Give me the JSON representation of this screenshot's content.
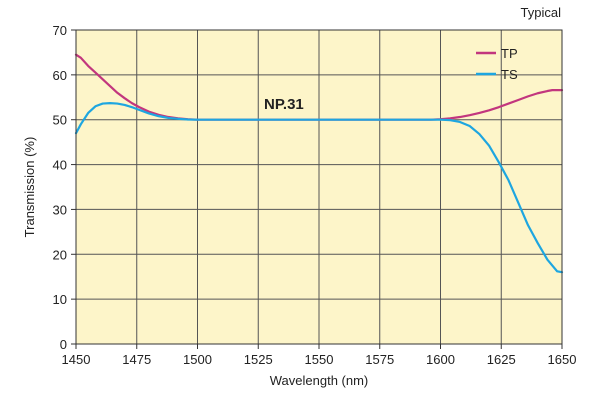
{
  "chart_data": {
    "type": "line",
    "note": "Typical",
    "annotation": "NP.31",
    "xlabel": "Wavelength (nm)",
    "ylabel": "Transmission (%)",
    "xlim": [
      1450,
      1650
    ],
    "ylim": [
      0,
      70
    ],
    "x_ticks": [
      1450,
      1475,
      1500,
      1525,
      1550,
      1575,
      1600,
      1625,
      1650
    ],
    "y_ticks": [
      0,
      10,
      20,
      30,
      40,
      50,
      60,
      70
    ],
    "grid": true,
    "legend_position": "top-right",
    "plot_background": "#FDF5C9",
    "series": [
      {
        "name": "TP",
        "color": "#C2367E",
        "x": [
          1450,
          1452,
          1455,
          1458,
          1461,
          1464,
          1467,
          1470,
          1473,
          1476,
          1480,
          1484,
          1488,
          1492,
          1496,
          1500,
          1525,
          1550,
          1575,
          1596,
          1600,
          1604,
          1608,
          1612,
          1616,
          1620,
          1624,
          1628,
          1632,
          1636,
          1640,
          1644,
          1646,
          1648,
          1650
        ],
        "y": [
          64.5,
          63.8,
          62,
          60.5,
          59,
          57.5,
          56,
          54.8,
          53.7,
          52.8,
          51.8,
          51.1,
          50.6,
          50.3,
          50.1,
          50,
          50,
          50,
          50,
          50,
          50.1,
          50.3,
          50.6,
          51,
          51.5,
          52.1,
          52.8,
          53.6,
          54.4,
          55.2,
          55.9,
          56.4,
          56.6,
          56.6,
          56.6
        ]
      },
      {
        "name": "TS",
        "color": "#1EA6E0",
        "x": [
          1450,
          1452,
          1455,
          1458,
          1461,
          1464,
          1467,
          1470,
          1473,
          1476,
          1480,
          1484,
          1488,
          1492,
          1496,
          1500,
          1525,
          1550,
          1575,
          1600,
          1604,
          1608,
          1612,
          1616,
          1620,
          1624,
          1628,
          1632,
          1636,
          1640,
          1644,
          1648,
          1650
        ],
        "y": [
          47,
          49,
          51.5,
          53,
          53.6,
          53.7,
          53.6,
          53.3,
          52.8,
          52.2,
          51.4,
          50.8,
          50.4,
          50.2,
          50.05,
          50,
          50,
          50,
          50,
          50,
          49.9,
          49.5,
          48.6,
          46.8,
          44.2,
          40.5,
          36.5,
          31.5,
          26.5,
          22.5,
          18.8,
          16.2,
          16
        ]
      }
    ]
  }
}
